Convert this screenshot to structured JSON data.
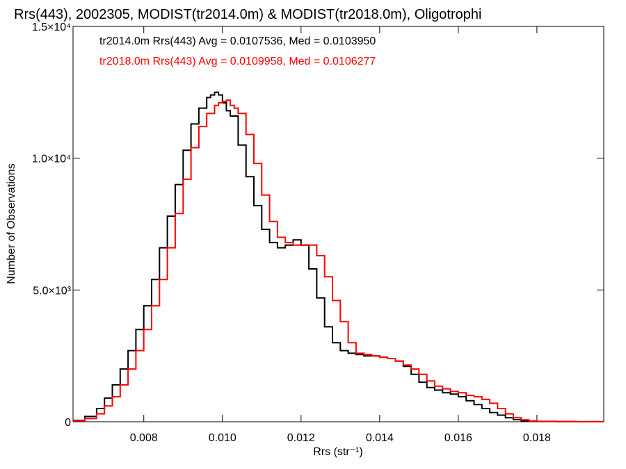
{
  "chart_data": {
    "type": "line",
    "title": "Rrs(443), 2002305, MODIST(tr2014.0m) & MODIST(tr2018.0m), Oligotrophi",
    "xlabel": "Rrs (str⁻¹)",
    "ylabel": "Number of Observations",
    "xlim": [
      0.0062,
      0.0197
    ],
    "ylim": [
      0,
      15000
    ],
    "x_ticks": [
      {
        "value": 0.008,
        "label": "0.008"
      },
      {
        "value": 0.01,
        "label": "0.010"
      },
      {
        "value": 0.012,
        "label": "0.012"
      },
      {
        "value": 0.014,
        "label": "0.014"
      },
      {
        "value": 0.016,
        "label": "0.016"
      },
      {
        "value": 0.018,
        "label": "0.018"
      }
    ],
    "y_ticks": [
      {
        "value": 0,
        "label": "0"
      },
      {
        "value": 5000,
        "label": "5.0×10³"
      },
      {
        "value": 10000,
        "label": "1.0×10⁴"
      },
      {
        "value": 15000,
        "label": "1.5×10⁴"
      }
    ],
    "legend": [
      {
        "text": "tr2014.0m Rrs(443) Avg = 0.0107536, Med = 0.0103950",
        "color": "#000000"
      },
      {
        "text": "tr2018.0m Rrs(443) Avg = 0.0109958, Med = 0.0106277",
        "color": "#ff0000"
      }
    ],
    "series": [
      {
        "color": "#000000",
        "x": [
          0.0062,
          0.0065,
          0.0068,
          0.007,
          0.0072,
          0.0074,
          0.0076,
          0.0078,
          0.008,
          0.0082,
          0.0084,
          0.0086,
          0.0088,
          0.009,
          0.0092,
          0.0094,
          0.0096,
          0.0097,
          0.0098,
          0.0099,
          0.01,
          0.0101,
          0.0102,
          0.0104,
          0.0106,
          0.0108,
          0.011,
          0.0112,
          0.0114,
          0.0116,
          0.0118,
          0.012,
          0.0122,
          0.0124,
          0.0126,
          0.0128,
          0.013,
          0.0132,
          0.0134,
          0.0136,
          0.0138,
          0.014,
          0.0142,
          0.0144,
          0.0146,
          0.0148,
          0.015,
          0.0152,
          0.0154,
          0.0156,
          0.0158,
          0.016,
          0.0162,
          0.0164,
          0.0166,
          0.0168,
          0.017,
          0.0172,
          0.0174,
          0.0176,
          0.0178,
          0.018,
          0.0185,
          0.019,
          0.0197
        ],
        "y": [
          50,
          200,
          500,
          900,
          1400,
          2000,
          2700,
          3500,
          4400,
          5400,
          6600,
          7800,
          9000,
          10300,
          11300,
          11900,
          12300,
          12400,
          12500,
          12400,
          12100,
          11800,
          11600,
          10500,
          9300,
          8200,
          7300,
          6800,
          6600,
          6700,
          6900,
          6700,
          5800,
          4700,
          3600,
          3000,
          2700,
          2600,
          2550,
          2500,
          2500,
          2450,
          2400,
          2300,
          2100,
          1800,
          1500,
          1300,
          1200,
          1100,
          1050,
          950,
          800,
          650,
          500,
          350,
          250,
          150,
          80,
          40,
          20,
          10,
          5,
          2,
          0
        ]
      },
      {
        "color": "#ff0000",
        "x": [
          0.0062,
          0.0065,
          0.0068,
          0.007,
          0.0072,
          0.0074,
          0.0076,
          0.0078,
          0.008,
          0.0082,
          0.0084,
          0.0086,
          0.0088,
          0.009,
          0.0092,
          0.0094,
          0.0096,
          0.0098,
          0.0099,
          0.01,
          0.0101,
          0.0102,
          0.0103,
          0.0104,
          0.0106,
          0.0108,
          0.011,
          0.0112,
          0.0114,
          0.0116,
          0.0118,
          0.012,
          0.0122,
          0.0124,
          0.0126,
          0.0128,
          0.013,
          0.0132,
          0.0134,
          0.0136,
          0.0138,
          0.014,
          0.0142,
          0.0144,
          0.0146,
          0.0148,
          0.015,
          0.0152,
          0.0154,
          0.0156,
          0.0158,
          0.016,
          0.0162,
          0.0164,
          0.0166,
          0.0168,
          0.017,
          0.0172,
          0.0174,
          0.0176,
          0.0178,
          0.018,
          0.0185,
          0.019,
          0.0197
        ],
        "y": [
          30,
          120,
          300,
          600,
          950,
          1400,
          2000,
          2700,
          3500,
          4400,
          5400,
          6600,
          7900,
          9200,
          10400,
          11200,
          11700,
          12000,
          12100,
          12150,
          12200,
          12000,
          11900,
          11700,
          10900,
          9800,
          8600,
          7600,
          7000,
          6800,
          6700,
          6700,
          6700,
          6300,
          5500,
          4600,
          3800,
          3000,
          2600,
          2550,
          2500,
          2450,
          2400,
          2300,
          2150,
          2000,
          1800,
          1550,
          1350,
          1250,
          1150,
          1100,
          1000,
          950,
          850,
          700,
          500,
          300,
          150,
          70,
          30,
          15,
          5,
          2,
          0
        ]
      }
    ]
  }
}
